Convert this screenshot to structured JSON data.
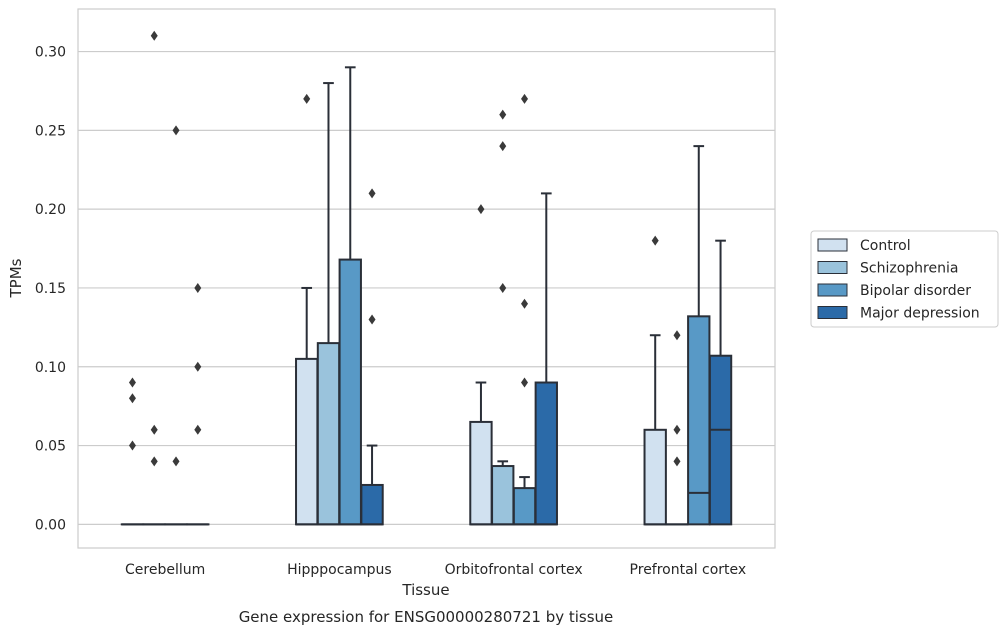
{
  "chart_data": {
    "type": "box",
    "title": "Gene expression for ENSG00000280721 by tissue",
    "xlabel": "Tissue",
    "ylabel": "TPMs",
    "ylim": [
      -0.015,
      0.327
    ],
    "yticks": [
      0.0,
      0.05,
      0.1,
      0.15,
      0.2,
      0.25,
      0.3
    ],
    "ytick_labels": [
      "0.00",
      "0.05",
      "0.10",
      "0.15",
      "0.20",
      "0.25",
      "0.30"
    ],
    "grid": "horizontal",
    "legend_position": "right",
    "categories": [
      "Cerebellum",
      "Hipppocampus",
      "Orbitofrontal cortex",
      "Prefrontal cortex"
    ],
    "series": [
      {
        "name": "Control",
        "color": "#d1e1f0",
        "boxes": [
          {
            "q1": 0,
            "median": 0,
            "q3": 0,
            "whisker_low": 0,
            "whisker_high": 0,
            "outliers": [
              0.05,
              0.08,
              0.09
            ]
          },
          {
            "q1": 0,
            "median": 0,
            "q3": 0.105,
            "whisker_low": 0,
            "whisker_high": 0.15,
            "outliers": [
              0.27
            ]
          },
          {
            "q1": 0,
            "median": 0,
            "q3": 0.065,
            "whisker_low": 0,
            "whisker_high": 0.09,
            "outliers": [
              0.2
            ]
          },
          {
            "q1": 0,
            "median": 0,
            "q3": 0.06,
            "whisker_low": 0,
            "whisker_high": 0.12,
            "outliers": [
              0.18
            ]
          }
        ]
      },
      {
        "name": "Schizophrenia",
        "color": "#9ac3dc",
        "boxes": [
          {
            "q1": 0,
            "median": 0,
            "q3": 0,
            "whisker_low": 0,
            "whisker_high": 0,
            "outliers": [
              0.04,
              0.06,
              0.31
            ]
          },
          {
            "q1": 0,
            "median": 0,
            "q3": 0.115,
            "whisker_low": 0,
            "whisker_high": 0.28,
            "outliers": []
          },
          {
            "q1": 0,
            "median": 0,
            "q3": 0.037,
            "whisker_low": 0,
            "whisker_high": 0.04,
            "outliers": [
              0.15,
              0.24,
              0.26
            ]
          },
          {
            "q1": 0,
            "median": 0,
            "q3": 0,
            "whisker_low": 0,
            "whisker_high": 0,
            "outliers": [
              0.04,
              0.06,
              0.12
            ]
          }
        ]
      },
      {
        "name": "Bipolar disorder",
        "color": "#5899c6",
        "boxes": [
          {
            "q1": 0,
            "median": 0,
            "q3": 0,
            "whisker_low": 0,
            "whisker_high": 0,
            "outliers": [
              0.04,
              0.25
            ]
          },
          {
            "q1": 0,
            "median": 0,
            "q3": 0.168,
            "whisker_low": 0,
            "whisker_high": 0.29,
            "outliers": []
          },
          {
            "q1": 0,
            "median": 0,
            "q3": 0.023,
            "whisker_low": 0,
            "whisker_high": 0.03,
            "outliers": [
              0.09,
              0.14,
              0.27
            ]
          },
          {
            "q1": 0,
            "median": 0.02,
            "q3": 0.132,
            "whisker_low": 0,
            "whisker_high": 0.24,
            "outliers": []
          }
        ]
      },
      {
        "name": "Major depression",
        "color": "#2b6aa8",
        "boxes": [
          {
            "q1": 0,
            "median": 0,
            "q3": 0,
            "whisker_low": 0,
            "whisker_high": 0,
            "outliers": [
              0.06,
              0.1,
              0.15
            ]
          },
          {
            "q1": 0,
            "median": 0,
            "q3": 0.025,
            "whisker_low": 0,
            "whisker_high": 0.05,
            "outliers": [
              0.13,
              0.21
            ]
          },
          {
            "q1": 0,
            "median": 0,
            "q3": 0.09,
            "whisker_low": 0,
            "whisker_high": 0.21,
            "outliers": []
          },
          {
            "q1": 0,
            "median": 0.06,
            "q3": 0.107,
            "whisker_low": 0,
            "whisker_high": 0.18,
            "outliers": []
          }
        ]
      }
    ]
  }
}
